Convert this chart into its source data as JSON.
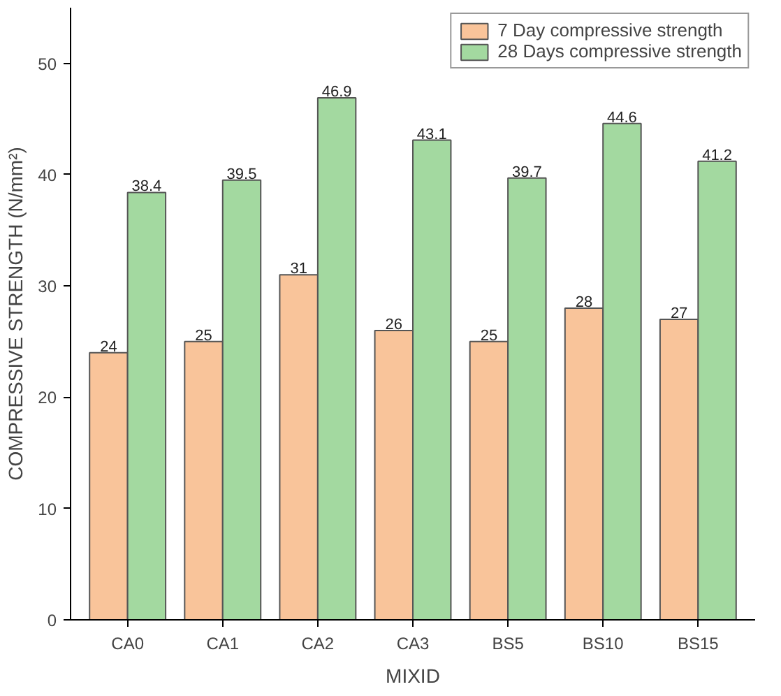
{
  "chart_data": {
    "type": "bar",
    "xlabel": "MIXID",
    "ylabel": "COMPRESSIVE STRENGTH (N/mm²)",
    "categories": [
      "CA0",
      "CA1",
      "CA2",
      "CA3",
      "BS5",
      "BS10",
      "BS15"
    ],
    "series": [
      {
        "name": "7 Day compressive strength",
        "color": "#f9c49a",
        "values": [
          24,
          25,
          31,
          26,
          25,
          28,
          27
        ]
      },
      {
        "name": "28 Days compressive strength",
        "color": "#a3d9a0",
        "values": [
          38.4,
          39.5,
          46.9,
          43.1,
          39.7,
          44.6,
          41.2
        ]
      }
    ],
    "ylim": [
      0,
      55
    ],
    "yticks": [
      0,
      10,
      20,
      30,
      40,
      50
    ],
    "data_labels": true,
    "legend": "top right",
    "grid": false
  }
}
